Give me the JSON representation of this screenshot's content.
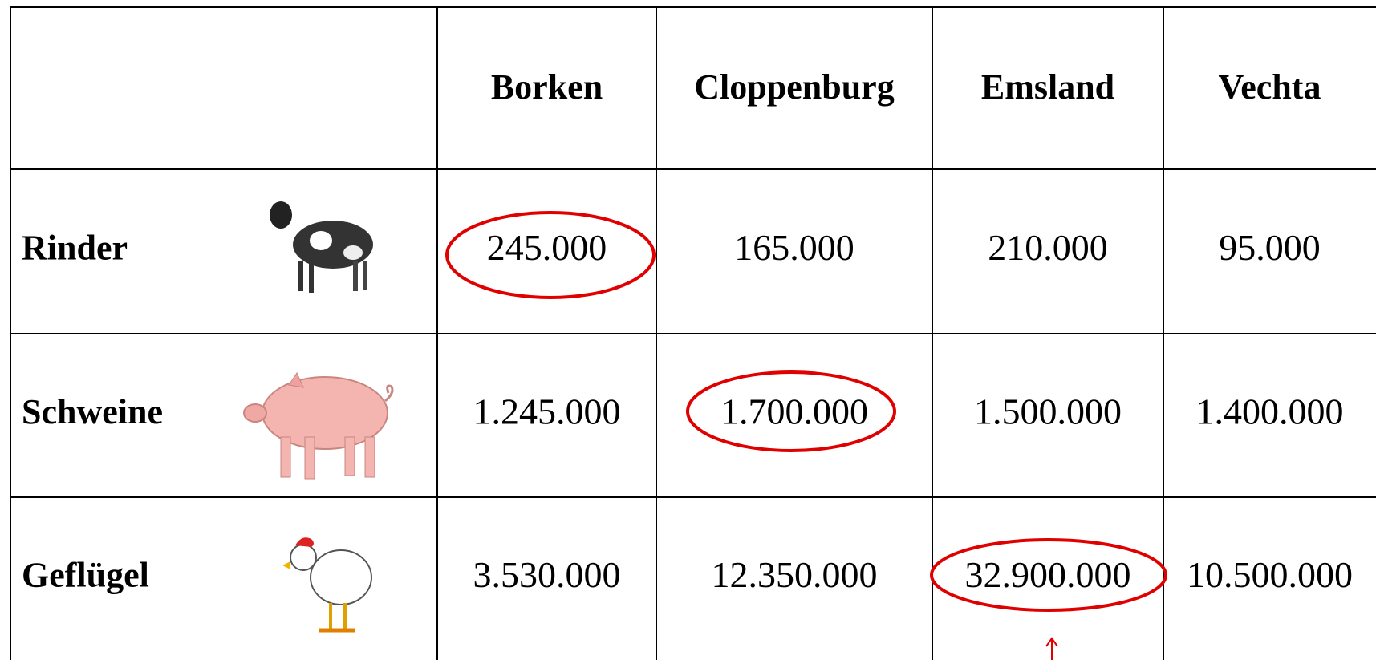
{
  "table": {
    "columns": [
      "Borken",
      "Cloppenburg",
      "Emsland",
      "Vechta"
    ],
    "rows": [
      {
        "label": "Rinder",
        "values": [
          "245.000",
          "165.000",
          "210.000",
          "95.000"
        ]
      },
      {
        "label": "Schweine",
        "values": [
          "1.245.000",
          "1.700.000",
          "1.500.000",
          "1.400.000"
        ]
      },
      {
        "label": "Geflügel",
        "values": [
          "3.530.000",
          "12.350.000",
          "32.900.000",
          "10.500.000"
        ]
      }
    ]
  }
}
